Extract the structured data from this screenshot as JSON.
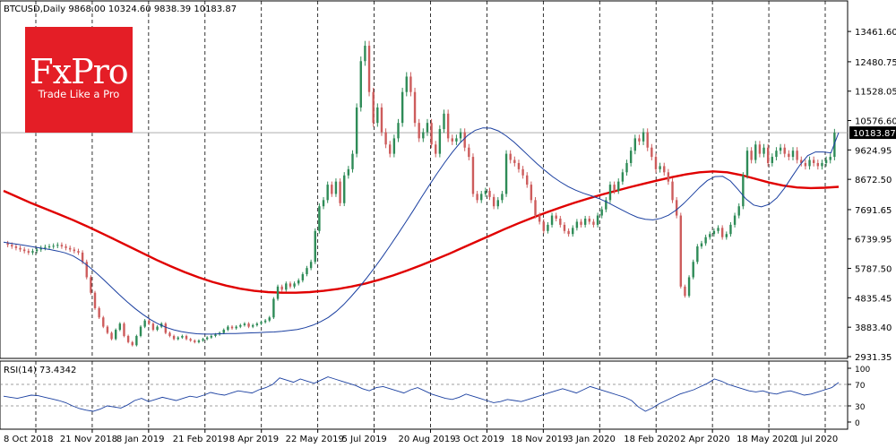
{
  "header": {
    "symbol_line": "BTCUSD,Daily  9868.00 10324.60 9838.39 10183.87"
  },
  "logo": {
    "name": "FxPro",
    "tagline": "Trade Like a Pro"
  },
  "colors": {
    "ma_long": "#e00000",
    "ma_short": "#1a3fa0",
    "up_candle": "#2e8b57",
    "down_candle": "#cd5c5c",
    "rsi_line": "#1a3fa0",
    "price_tag_bg": "#000000",
    "logo_bg": "#e41e26"
  },
  "chart_data": [
    {
      "type": "candlestick",
      "title": "BTCUSD,Daily",
      "ohlc_last": {
        "open": 9868.0,
        "high": 10324.6,
        "low": 9838.39,
        "close": 10183.87
      },
      "x_ticks": [
        "8 Oct 2018",
        "21 Nov 2018",
        "8 Jan 2019",
        "21 Feb 2019",
        "8 Apr 2019",
        "22 May 2019",
        "5 Jul 2019",
        "20 Aug 2019",
        "3 Oct 2019",
        "18 Nov 2019",
        "3 Jan 2020",
        "18 Feb 2020",
        "2 Apr 2020",
        "18 May 2020",
        "1 Jul 2020"
      ],
      "y_ticks": [
        "13461.60",
        "12480.75",
        "11528.05",
        "10576.60",
        "9624.95",
        "8672.50",
        "7691.65",
        "6739.95",
        "5787.50",
        "4835.45",
        "3883.40",
        "2931.35"
      ],
      "ylim": [
        2931.35,
        13900
      ],
      "current_price_label": "10183.87",
      "current_price": 10183.87,
      "closes": [
        6600,
        6550,
        6500,
        6450,
        6400,
        6350,
        6300,
        6350,
        6400,
        6450,
        6480,
        6500,
        6520,
        6550,
        6500,
        6450,
        6400,
        6350,
        6300,
        6000,
        5500,
        5000,
        4500,
        4200,
        3900,
        3700,
        3500,
        3800,
        4000,
        3600,
        3400,
        3300,
        3600,
        3900,
        4100,
        4000,
        3800,
        3900,
        4000,
        3700,
        3600,
        3500,
        3550,
        3600,
        3500,
        3450,
        3400,
        3450,
        3500,
        3550,
        3600,
        3650,
        3700,
        3800,
        3900,
        3850,
        3900,
        3950,
        4000,
        3900,
        3950,
        4000,
        4050,
        4100,
        4200,
        4800,
        5200,
        5100,
        5300,
        5200,
        5300,
        5400,
        5600,
        5800,
        6000,
        7000,
        7800,
        8000,
        8500,
        8200,
        8600,
        7900,
        8800,
        9000,
        9500,
        11000,
        12500,
        13000,
        11500,
        10500,
        11000,
        10200,
        9800,
        9500,
        10000,
        10500,
        11500,
        12000,
        11500,
        10500,
        10000,
        10200,
        10500,
        9800,
        9500,
        10300,
        10800,
        10000,
        9900,
        10000,
        10200,
        9700,
        9400,
        8200,
        8000,
        8200,
        8300,
        8100,
        7800,
        8000,
        8200,
        9500,
        9300,
        9200,
        9000,
        8800,
        8500,
        8000,
        7500,
        7300,
        7000,
        7200,
        7500,
        7400,
        7200,
        7000,
        6900,
        7100,
        7300,
        7200,
        7400,
        7300,
        7200,
        7500,
        7700,
        8000,
        8500,
        8300,
        8600,
        8900,
        9200,
        9600,
        10000,
        9900,
        10200,
        9700,
        9400,
        9000,
        9100,
        8900,
        8600,
        8000,
        7500,
        5200,
        4900,
        5500,
        6000,
        6500,
        6600,
        6800,
        6900,
        7000,
        7100,
        6800,
        6900,
        7200,
        7500,
        7800,
        8800,
        9600,
        9300,
        9800,
        9500,
        9700,
        9200,
        9400,
        9600,
        9700,
        9500,
        9400,
        9600,
        9300,
        9200,
        9100,
        9300,
        9200,
        9100,
        9200,
        9300,
        9400,
        10183.87
      ],
      "ma_short": [
        6640,
        6600,
        6560,
        6520,
        6480,
        6440,
        6400,
        6350,
        6290,
        6190,
        6040,
        5850,
        5640,
        5410,
        5170,
        4930,
        4700,
        4490,
        4300,
        4130,
        3990,
        3880,
        3800,
        3740,
        3700,
        3670,
        3660,
        3660,
        3670,
        3680,
        3680,
        3690,
        3700,
        3710,
        3720,
        3730,
        3750,
        3780,
        3810,
        3870,
        3950,
        4060,
        4200,
        4390,
        4620,
        4890,
        5180,
        5490,
        5820,
        6170,
        6530,
        6900,
        7280,
        7670,
        8070,
        8460,
        8840,
        9200,
        9540,
        9840,
        10090,
        10260,
        10340,
        10330,
        10240,
        10080,
        9880,
        9650,
        9410,
        9180,
        8960,
        8760,
        8590,
        8440,
        8320,
        8220,
        8140,
        8050,
        7940,
        7810,
        7680,
        7550,
        7440,
        7380,
        7360,
        7410,
        7510,
        7680,
        7900,
        8150,
        8410,
        8630,
        8760,
        8770,
        8620,
        8340,
        8040,
        7840,
        7780,
        7860,
        8070,
        8390,
        8770,
        9140,
        9440,
        9560,
        9560,
        9530,
        10183.87
      ],
      "ma_long": [
        8300,
        8100,
        7900,
        7720,
        7540,
        7350,
        7150,
        6940,
        6720,
        6500,
        6280,
        6060,
        5860,
        5670,
        5500,
        5350,
        5230,
        5130,
        5060,
        5020,
        5000,
        5000,
        5020,
        5060,
        5120,
        5200,
        5300,
        5420,
        5560,
        5720,
        5890,
        6070,
        6260,
        6460,
        6660,
        6860,
        7060,
        7250,
        7430,
        7600,
        7760,
        7910,
        8050,
        8180,
        8300,
        8420,
        8530,
        8640,
        8740,
        8830,
        8900,
        8930,
        8900,
        8810,
        8690,
        8570,
        8470,
        8410,
        8390,
        8400,
        8430
      ],
      "rsi": {
        "label": "RSI(14) 73.4342",
        "value": 73.4342,
        "ylim": [
          0,
          100
        ],
        "y_ticks": [
          "100",
          "70",
          "30",
          "0"
        ],
        "levels": [
          70,
          30
        ],
        "values": [
          48,
          46,
          44,
          47,
          50,
          49,
          46,
          43,
          40,
          36,
          30,
          25,
          22,
          20,
          24,
          30,
          28,
          26,
          32,
          40,
          44,
          38,
          42,
          46,
          43,
          40,
          44,
          48,
          46,
          50,
          55,
          52,
          50,
          54,
          58,
          56,
          54,
          60,
          64,
          70,
          82,
          78,
          74,
          80,
          76,
          72,
          78,
          84,
          80,
          76,
          72,
          68,
          62,
          58,
          64,
          66,
          62,
          58,
          54,
          60,
          64,
          58,
          52,
          48,
          44,
          42,
          46,
          52,
          48,
          44,
          40,
          36,
          38,
          42,
          40,
          38,
          42,
          46,
          50,
          54,
          58,
          62,
          58,
          54,
          60,
          66,
          62,
          58,
          54,
          50,
          46,
          40,
          28,
          20,
          26,
          34,
          40,
          46,
          52,
          56,
          60,
          66,
          72,
          80,
          76,
          70,
          66,
          62,
          58,
          56,
          58,
          54,
          52,
          56,
          58,
          54,
          50,
          52,
          56,
          60,
          64,
          73.4342
        ]
      }
    }
  ]
}
